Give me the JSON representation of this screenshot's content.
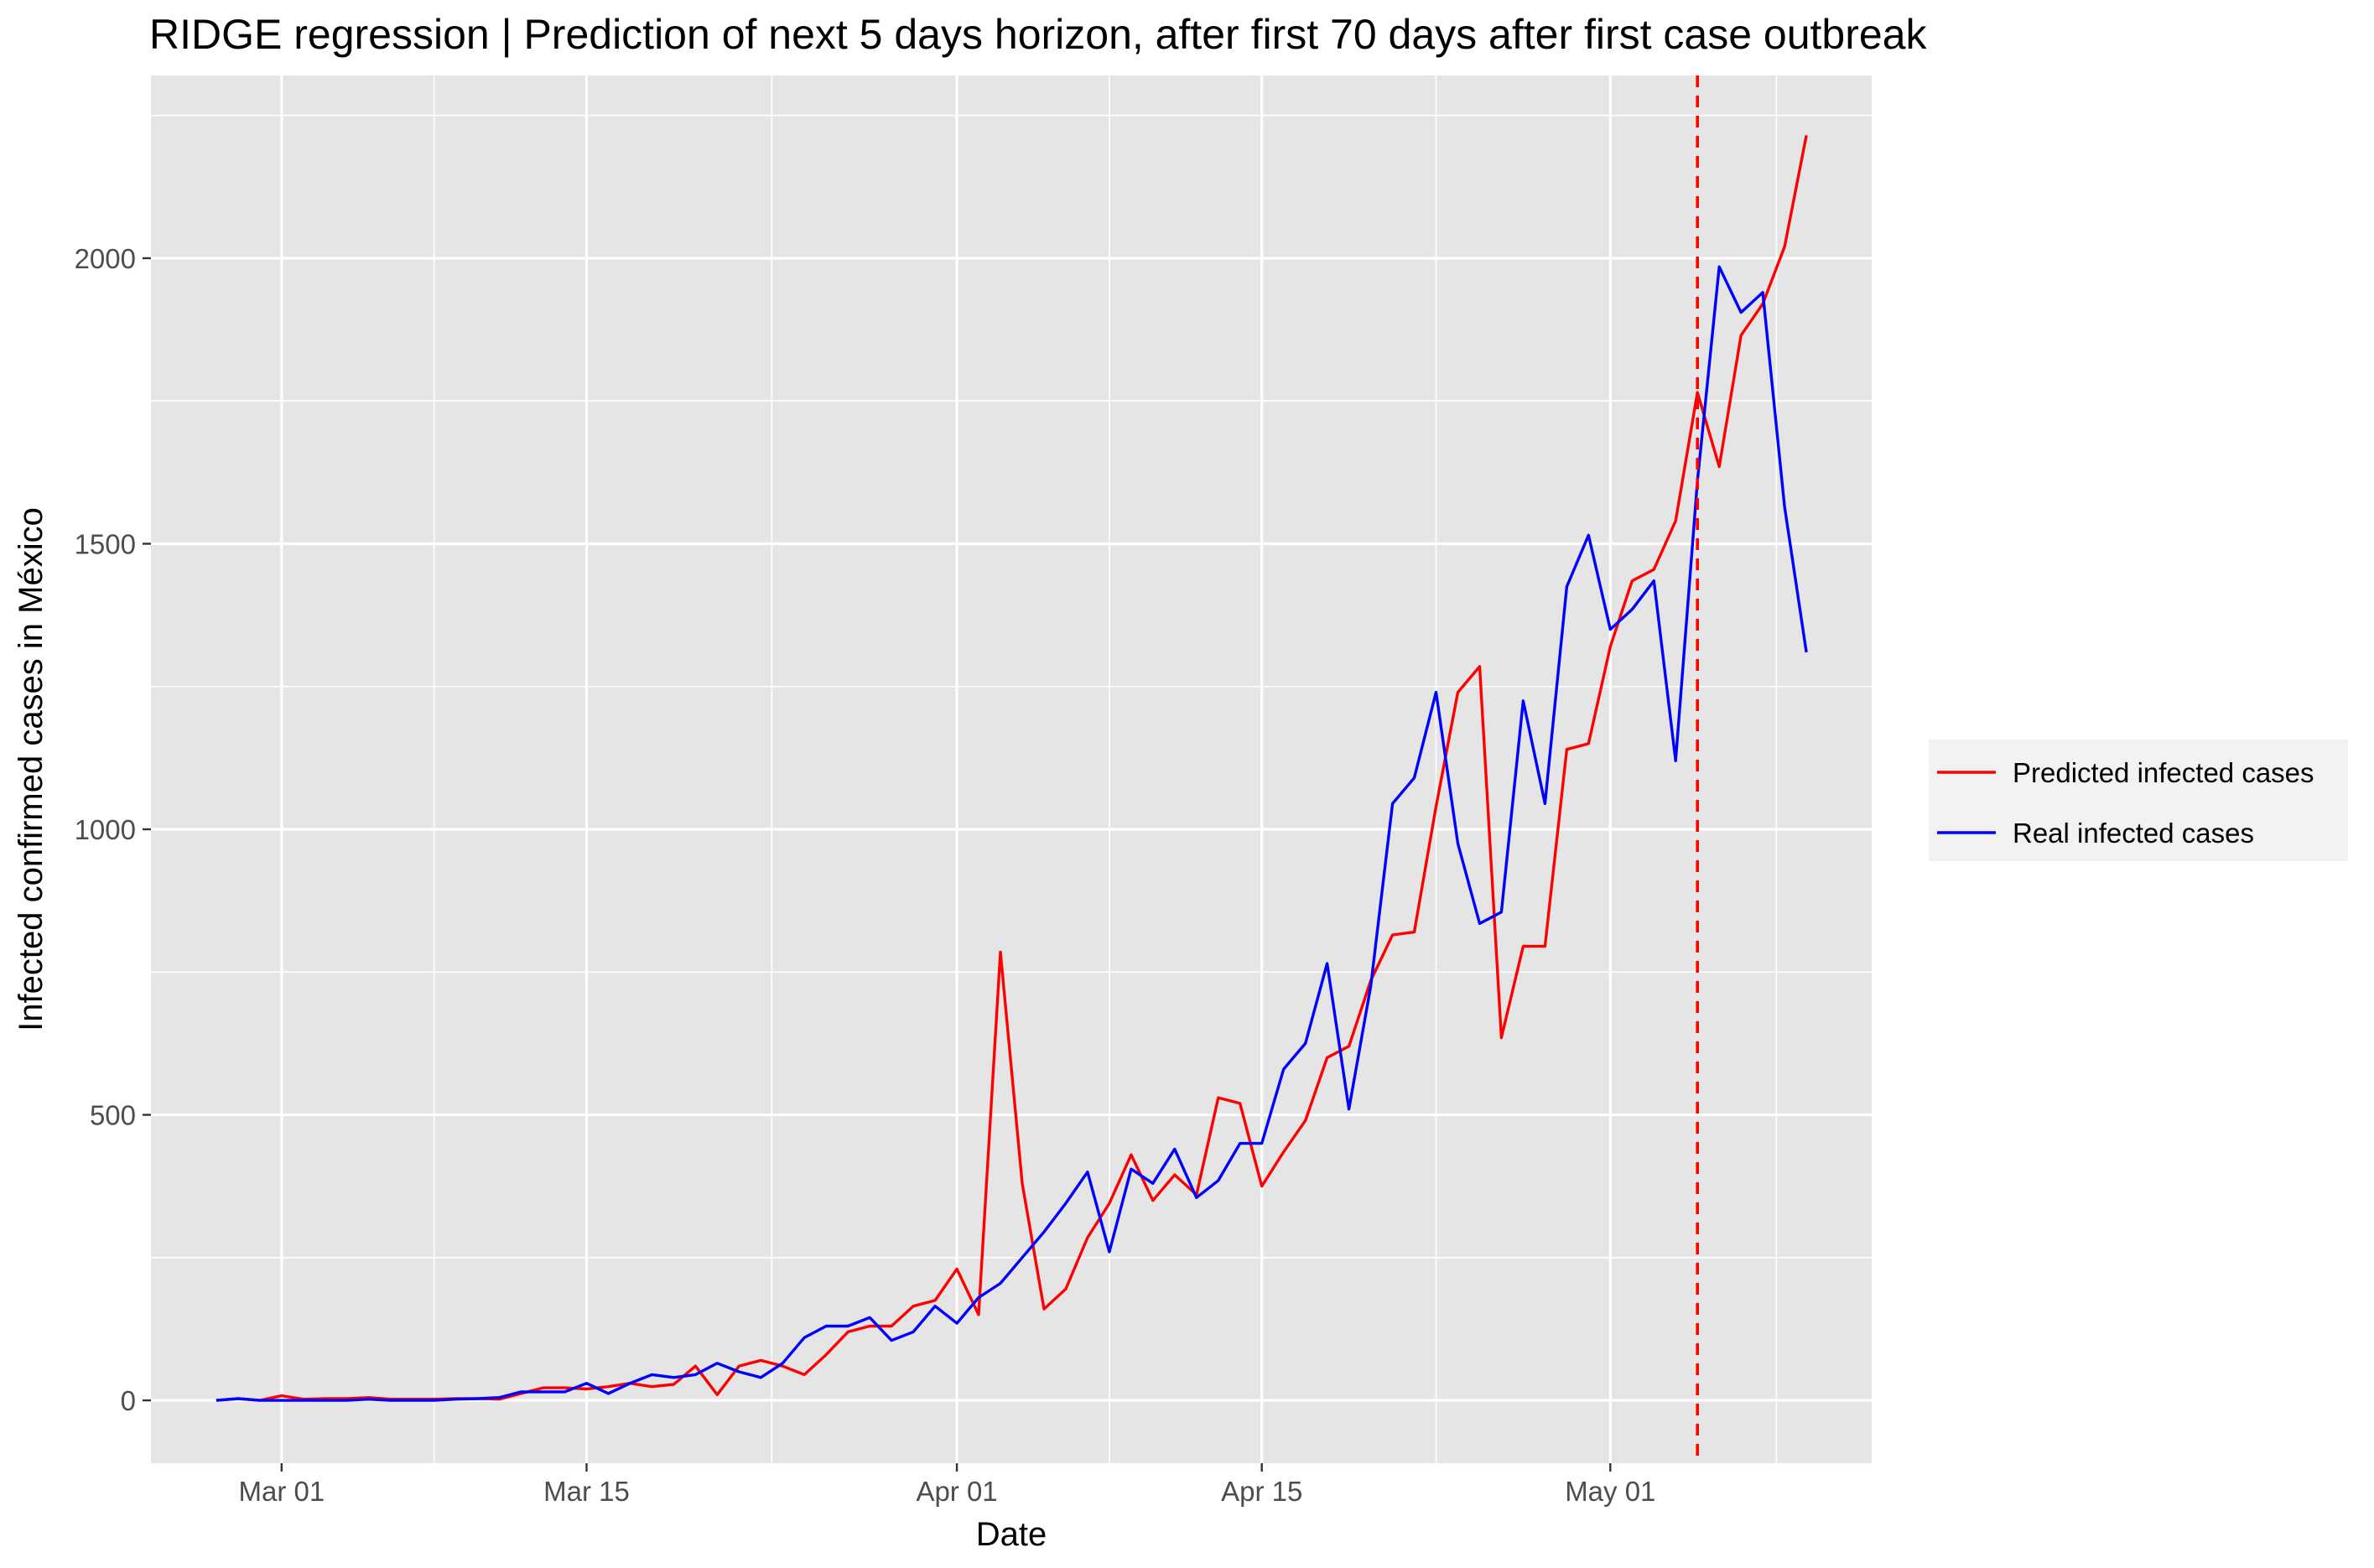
{
  "chart_data": {
    "type": "line",
    "title": "RIDGE regression | Prediction of next 5 days horizon, after first 70 days after first case outbreak",
    "xlabel": "Date",
    "ylabel": "Infected confirmed cases in México",
    "x_start": "2020-02-27",
    "x_ticks": [
      {
        "label": "Mar 01",
        "date": "2020-03-01"
      },
      {
        "label": "Mar 15",
        "date": "2020-03-15"
      },
      {
        "label": "Apr 01",
        "date": "2020-04-01"
      },
      {
        "label": "Apr 15",
        "date": "2020-04-15"
      },
      {
        "label": "May 01",
        "date": "2020-05-01"
      }
    ],
    "y_ticks": [
      0,
      500,
      1000,
      1500,
      2000
    ],
    "xlim": [
      "2020-02-24",
      "2020-05-13"
    ],
    "ylim": [
      -110,
      2320
    ],
    "vline": {
      "date": "2020-05-05",
      "style": "dashed",
      "color": "#ff0000"
    },
    "grid": true,
    "legend_position": "right",
    "series": [
      {
        "name": "Predicted infected cases",
        "color": "#ff0000",
        "values": [
          0,
          3,
          0,
          8,
          2,
          3,
          3,
          5,
          2,
          2,
          2,
          3,
          3,
          2,
          12,
          22,
          22,
          20,
          24,
          30,
          24,
          28,
          60,
          10,
          60,
          70,
          60,
          45,
          80,
          120,
          130,
          130,
          165,
          175,
          230,
          150,
          785,
          380,
          160,
          195,
          285,
          345,
          430,
          350,
          395,
          360,
          530,
          520,
          375,
          435,
          490,
          600,
          620,
          735,
          815,
          820,
          1040,
          1240,
          1285,
          635,
          795,
          795,
          1140,
          1150,
          1320,
          1435,
          1455,
          1540,
          1765,
          1635,
          1865,
          1920,
          2020,
          2215
        ]
      },
      {
        "name": "Real infected cases",
        "color": "#0000ff",
        "values": [
          0,
          3,
          0,
          0,
          0,
          0,
          0,
          2,
          0,
          0,
          0,
          2,
          3,
          5,
          15,
          15,
          15,
          30,
          12,
          30,
          45,
          40,
          45,
          65,
          50,
          40,
          65,
          110,
          130,
          130,
          145,
          105,
          120,
          165,
          135,
          180,
          205,
          250,
          295,
          345,
          400,
          260,
          405,
          380,
          440,
          355,
          385,
          450,
          450,
          580,
          625,
          765,
          510,
          725,
          1045,
          1090,
          1240,
          975,
          835,
          855,
          1225,
          1045,
          1425,
          1515,
          1350,
          1385,
          1435,
          1120,
          1610,
          1985,
          1905,
          1940,
          1565,
          1310
        ]
      }
    ]
  }
}
